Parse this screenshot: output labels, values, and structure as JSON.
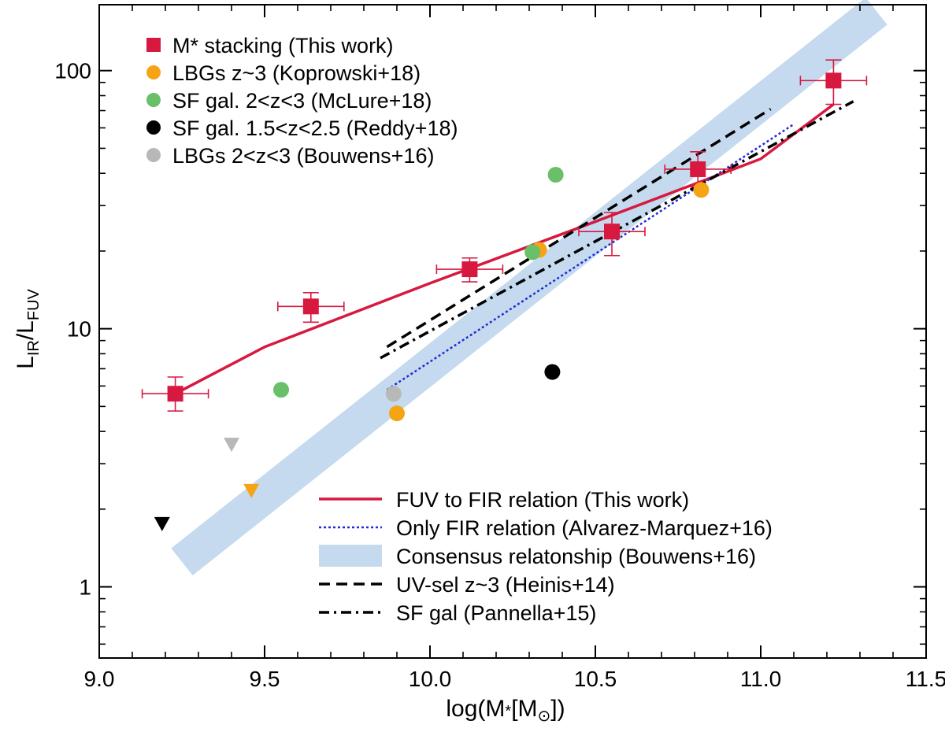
{
  "chart_data": {
    "type": "scatter",
    "xlabel": "log(M*[M⊙])",
    "ylabel": "LIR/LFUV",
    "xlim": [
      9.0,
      11.5
    ],
    "ylim": [
      0.53,
      180
    ],
    "yscale": "log",
    "legend_position": "top-left and bottom-right",
    "x_ticks": [
      9.0,
      9.5,
      10.0,
      10.5,
      11.0,
      11.5
    ],
    "x_tick_labels": [
      "9.0",
      "9.5",
      "10.0",
      "10.5",
      "11.0",
      "11.5"
    ],
    "y_ticks": [
      1,
      10,
      100
    ],
    "y_tick_labels": [
      "1",
      "10",
      "100"
    ],
    "colors": {
      "stacking": "#d7193f",
      "koprowski": "#f5a514",
      "mclure": "#6abf69",
      "reddy": "#000000",
      "bouwens": "#b8b8b8",
      "fir_relation": "#1f2bd6",
      "consensus": "#c5daee"
    },
    "series": [
      {
        "name": "M* stacking (This work)",
        "marker": "square",
        "color": "#d7193f",
        "x": [
          9.23,
          9.64,
          10.12,
          10.55,
          10.81,
          11.22
        ],
        "y": [
          5.6,
          12.2,
          17.0,
          23.8,
          41.5,
          91.5
        ],
        "y_lower": [
          4.8,
          10.6,
          15.2,
          19.2,
          35.5,
          74.0
        ],
        "y_upper": [
          6.5,
          13.8,
          18.8,
          28.2,
          48.5,
          110.0
        ],
        "x_err": [
          0.1,
          0.1,
          0.1,
          0.1,
          0.1,
          0.1
        ]
      },
      {
        "name": "LBGs z~3 (Koprowski+18)",
        "marker": "circle",
        "color": "#f5a514",
        "x": [
          9.9,
          10.33,
          10.82
        ],
        "y": [
          4.7,
          20.2,
          34.5
        ]
      },
      {
        "name": "SF gal. 2<z<3 (McLure+18)",
        "marker": "circle",
        "color": "#6abf69",
        "x": [
          9.55,
          10.31,
          10.38
        ],
        "y": [
          5.8,
          19.8,
          39.5
        ]
      },
      {
        "name": "SF gal. 1.5<z<2.5 (Reddy+18)",
        "marker": "circle",
        "color": "#000000",
        "x": [
          10.37
        ],
        "y": [
          6.8
        ]
      },
      {
        "name": "LBGs 2<z<3 (Bouwens+16)",
        "marker": "circle",
        "color": "#b8b8b8",
        "x": [
          9.89
        ],
        "y": [
          5.6
        ]
      },
      {
        "name": "upper limits",
        "marker": "triangle-down",
        "points": [
          {
            "x": 9.19,
            "y": 1.75,
            "color": "#000000"
          },
          {
            "x": 9.4,
            "y": 3.55,
            "color": "#b8b8b8"
          },
          {
            "x": 9.46,
            "y": 2.35,
            "color": "#f5a514"
          }
        ]
      }
    ],
    "lines": [
      {
        "name": "FUV to FIR relation (This work)",
        "style": "solid",
        "color": "#d7193f",
        "x": [
          9.23,
          9.5,
          10.0,
          10.5,
          11.0,
          11.22
        ],
        "y": [
          5.6,
          8.5,
          15.0,
          26.0,
          45.5,
          74.0
        ]
      },
      {
        "name": "Only FIR relation (Alvarez-Marquez+16)",
        "style": "dotted",
        "color": "#1f2bd6",
        "x": [
          9.87,
          11.1
        ],
        "y": [
          5.8,
          62.0
        ]
      },
      {
        "name": "Consensus relatonship (Bouwens+16)",
        "style": "band",
        "color": "#c5daee",
        "x": [
          9.25,
          11.35
        ],
        "y": [
          1.25,
          170.0
        ]
      },
      {
        "name": "UV-sel z~3 (Heinis+14)",
        "style": "dashed",
        "color": "#000000",
        "x": [
          9.87,
          11.03
        ],
        "y": [
          8.5,
          71.0
        ]
      },
      {
        "name": "SF gal (Pannella+15)",
        "style": "dashdot",
        "color": "#000000",
        "x": [
          9.85,
          11.28
        ],
        "y": [
          7.7,
          76.0
        ]
      }
    ],
    "legend_top": [
      {
        "label": "M* stacking (This work)",
        "marker": "square",
        "color": "#d7193f"
      },
      {
        "label": "LBGs z~3 (Koprowski+18)",
        "marker": "circle",
        "color": "#f5a514"
      },
      {
        "label": "SF gal. 2<z<3 (McLure+18)",
        "marker": "circle",
        "color": "#6abf69"
      },
      {
        "label": "SF gal. 1.5<z<2.5 (Reddy+18)",
        "marker": "circle",
        "color": "#000000"
      },
      {
        "label": "LBGs 2<z<3 (Bouwens+16)",
        "marker": "circle",
        "color": "#b8b8b8"
      }
    ],
    "legend_bottom": [
      {
        "label": "FUV to FIR relation (This work)",
        "style": "solid",
        "color": "#d7193f"
      },
      {
        "label": "Only FIR relation (Alvarez-Marquez+16)",
        "style": "dotted",
        "color": "#1f2bd6"
      },
      {
        "label": "Consensus relatonship (Bouwens+16)",
        "style": "band",
        "color": "#c5daee"
      },
      {
        "label": "UV-sel z~3 (Heinis+14)",
        "style": "dashed",
        "color": "#000000"
      },
      {
        "label": "SF gal (Pannella+15)",
        "style": "dashdot",
        "color": "#000000"
      }
    ]
  }
}
